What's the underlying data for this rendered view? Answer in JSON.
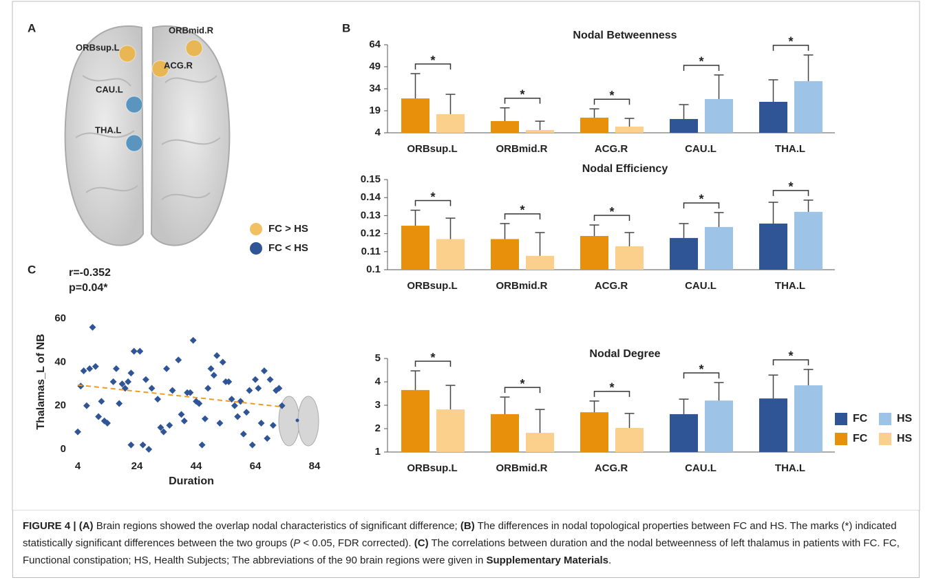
{
  "figure": {
    "panel_labels": [
      "A",
      "B",
      "C"
    ],
    "brain_nodes": [
      {
        "label": "ORBsup.L",
        "color": "#e8b652"
      },
      {
        "label": "ORBmid.R",
        "color": "#e8b652"
      },
      {
        "label": "ACG.R",
        "color": "#e8b652"
      },
      {
        "label": "CAU.L",
        "color": "#5a95c0"
      },
      {
        "label": "THA.L",
        "color": "#5a95c0"
      }
    ],
    "brain_legend": [
      {
        "label": "FC > HS",
        "color": "#f2c060"
      },
      {
        "label": "FC < HS",
        "color": "#2f5597"
      }
    ],
    "legend": [
      {
        "label": "FC",
        "color": "#2f5597"
      },
      {
        "label": "HS",
        "color": "#9dc3e6"
      },
      {
        "label": "FC",
        "color": "#e8900c"
      },
      {
        "label": "HS",
        "color": "#fbcf8c"
      }
    ]
  },
  "chart_data": [
    {
      "type": "bar",
      "title": "Nodal Betweenness",
      "categories": [
        "ORBsup.L",
        "ORBmid.R",
        "ACG.R",
        "CAU.L",
        "THA.L"
      ],
      "series": [
        {
          "values": [
            27.4,
            12,
            14.3,
            13.4,
            25.1
          ],
          "errors": [
            16.9,
            9,
            6,
            9.8,
            15
          ],
          "colors": [
            "#e8900c",
            "#e8900c",
            "#e8900c",
            "#2f5597",
            "#2f5597"
          ]
        },
        {
          "values": [
            16.7,
            5.9,
            8.2,
            27,
            39.2
          ],
          "errors": [
            13.5,
            6,
            5.6,
            16.4,
            17.8
          ],
          "colors": [
            "#fbcf8c",
            "#fbcf8c",
            "#fbcf8c",
            "#9dc3e6",
            "#9dc3e6"
          ]
        }
      ],
      "annotations": [
        "*",
        "*",
        "*",
        "*",
        "*"
      ],
      "ylim": [
        4,
        64
      ],
      "yticks": [
        4,
        19,
        34,
        49,
        64
      ]
    },
    {
      "type": "bar",
      "title": "Nodal Efficiency",
      "categories": [
        "ORBsup.L",
        "ORBmid.R",
        "ACG.R",
        "CAU.L",
        "THA.L"
      ],
      "series": [
        {
          "values": [
            0.1244,
            0.117,
            0.1187,
            0.1176,
            0.1256
          ],
          "errors": [
            0.0086,
            0.0086,
            0.0061,
            0.008,
            0.0118
          ],
          "colors": [
            "#e8900c",
            "#e8900c",
            "#e8900c",
            "#2f5597",
            "#2f5597"
          ]
        },
        {
          "values": [
            0.117,
            0.1077,
            0.113,
            0.1237,
            0.1321
          ],
          "errors": [
            0.0116,
            0.0129,
            0.0076,
            0.008,
            0.0065
          ],
          "colors": [
            "#fbcf8c",
            "#fbcf8c",
            "#fbcf8c",
            "#9dc3e6",
            "#9dc3e6"
          ]
        }
      ],
      "annotations": [
        "*",
        "*",
        "*",
        "*",
        "*"
      ],
      "ylim": [
        0.1,
        0.15
      ],
      "yticks": [
        0.1,
        0.11,
        0.12,
        0.13,
        0.14,
        0.15
      ]
    },
    {
      "type": "bar",
      "title": "Nodal Degree",
      "categories": [
        "ORBsup.L",
        "ORBmid.R",
        "ACG.R",
        "CAU.L",
        "THA.L"
      ],
      "series": [
        {
          "values": [
            3.65,
            2.62,
            2.7,
            2.62,
            3.29
          ],
          "errors": [
            0.82,
            0.73,
            0.48,
            0.64,
            1.0
          ],
          "colors": [
            "#e8900c",
            "#e8900c",
            "#e8900c",
            "#2f5597",
            "#2f5597"
          ]
        },
        {
          "values": [
            2.82,
            1.82,
            2.03,
            3.2,
            3.85
          ],
          "errors": [
            1.03,
            1.0,
            0.62,
            0.77,
            0.68
          ],
          "colors": [
            "#fbcf8c",
            "#fbcf8c",
            "#fbcf8c",
            "#9dc3e6",
            "#9dc3e6"
          ]
        }
      ],
      "annotations": [
        "*",
        "*",
        "*",
        "*",
        "*"
      ],
      "ylim": [
        1,
        5
      ],
      "yticks": [
        1,
        2,
        3,
        4,
        5
      ]
    },
    {
      "type": "scatter",
      "xlabel": "Duration",
      "ylabel": "Thalamas_L of NB",
      "annotations": [
        "r=-0.352",
        "p=0.04*"
      ],
      "color": "#2f5597",
      "x": [
        4,
        5,
        6,
        7,
        8,
        9,
        10,
        11,
        12,
        13,
        14,
        16,
        17,
        18,
        19,
        20,
        21,
        22,
        22,
        23,
        25,
        26,
        27,
        28,
        29,
        31,
        32,
        33,
        34,
        35,
        36,
        38,
        39,
        40,
        41,
        42,
        43,
        44,
        45,
        46,
        47,
        48,
        49,
        50,
        51,
        52,
        53,
        54,
        55,
        56,
        57,
        58,
        59,
        60,
        61,
        62,
        63,
        64,
        65,
        66,
        67,
        68,
        69,
        70,
        71,
        72,
        73
      ],
      "values": [
        8,
        29,
        36,
        20,
        37,
        56,
        38,
        15,
        22,
        13,
        12,
        31,
        37,
        21,
        30,
        28,
        31,
        2,
        35,
        45,
        45,
        2,
        32,
        0,
        28,
        23,
        10,
        8,
        37,
        11,
        27,
        41,
        16,
        13,
        26,
        26,
        50,
        22,
        21,
        2,
        14,
        28,
        37,
        34,
        43,
        12,
        40,
        31,
        31,
        23,
        20,
        15,
        22,
        7,
        17,
        27,
        2,
        32,
        28,
        12,
        36,
        5,
        32,
        11,
        27,
        28,
        20
      ],
      "trendline": {
        "x": [
          4,
          73
        ],
        "values": [
          29.5,
          19.5
        ],
        "color": "#ed9b22"
      },
      "xlim": [
        4,
        84
      ],
      "xticks": [
        4,
        24,
        44,
        64,
        84
      ],
      "ylim": [
        0,
        60
      ],
      "yticks": [
        0,
        20,
        40,
        60
      ]
    }
  ],
  "caption": [
    {
      "text": "FIGURE 4 | (A)",
      "style": "bold"
    },
    {
      "text": " Brain regions showed the overlap nodal characteristics of significant difference; ",
      "style": "normal"
    },
    {
      "text": "(B)",
      "style": "bold"
    },
    {
      "text": " The differences in nodal topological properties between FC and HS. The marks (*) indicated statistically significant differences between the two groups (",
      "style": "normal"
    },
    {
      "text": "P",
      "style": "italic"
    },
    {
      "text": " < 0.05, FDR corrected). ",
      "style": "normal"
    },
    {
      "text": "(C)",
      "style": "bold"
    },
    {
      "text": " The correlations between duration and the nodal betweenness of left thalamus in patients with FC. FC, Functional constipation; HS, Health Subjects; The abbreviations of the 90 brain regions were given in ",
      "style": "normal"
    },
    {
      "text": "Supplementary Materials",
      "style": "bold"
    },
    {
      "text": ".",
      "style": "normal"
    }
  ]
}
